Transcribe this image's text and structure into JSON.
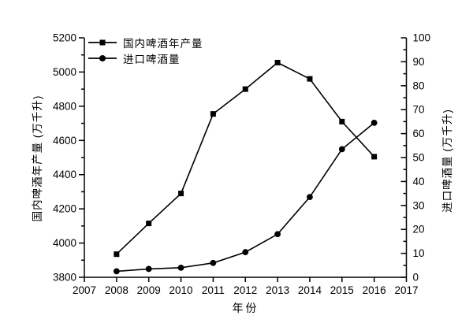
{
  "figure": {
    "background": "#ffffff",
    "ink_color": "#000000"
  },
  "chart_data": {
    "type": "line",
    "x": [
      2008,
      2009,
      2010,
      2011,
      2012,
      2013,
      2014,
      2015,
      2016
    ],
    "series": [
      {
        "name": "国内啤酒年产量",
        "axis": "left",
        "marker": "square",
        "color": "#000000",
        "values": [
          3935,
          4115,
          4290,
          4755,
          4900,
          5055,
          4960,
          4710,
          4505
        ]
      },
      {
        "name": "进口啤酒量",
        "axis": "right",
        "marker": "circle",
        "color": "#000000",
        "values": [
          2.5,
          3.5,
          4,
          6,
          10.5,
          18,
          33.5,
          53.5,
          64.5
        ]
      }
    ],
    "title": "",
    "xlabel": "年份",
    "ylabel_left": "国内啤酒年产量 (万千升)",
    "ylabel_right": "进口啤酒量 (万千升)",
    "xlim": [
      2007,
      2017
    ],
    "ylim_left": [
      3800,
      5200
    ],
    "ylim_right": [
      0,
      100
    ],
    "xticks": [
      2007,
      2008,
      2009,
      2010,
      2011,
      2012,
      2013,
      2014,
      2015,
      2016,
      2017
    ],
    "yticks_left": [
      3800,
      4000,
      4200,
      4400,
      4600,
      4800,
      5000,
      5200
    ],
    "yticks_left_minor_step": 100,
    "yticks_right": [
      0,
      10,
      20,
      30,
      40,
      50,
      60,
      70,
      80,
      90,
      100
    ],
    "yticks_right_minor_step": 5,
    "legend_position": "top-left-inside",
    "grid": false
  }
}
